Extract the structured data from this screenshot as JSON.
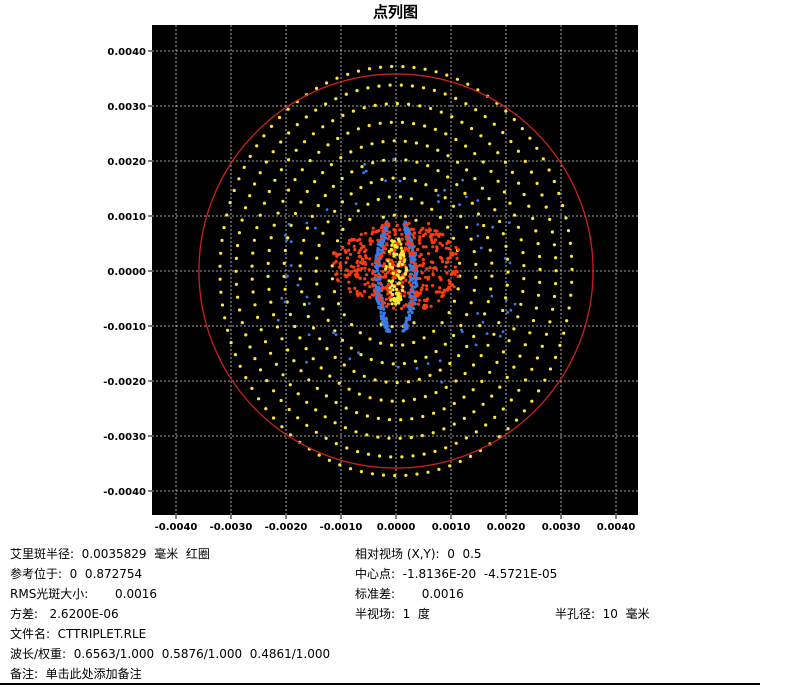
{
  "title": "点列图",
  "colors": {
    "background": "#000000",
    "grid": "#d8d8d8",
    "airy_circle": "#cc1f1f",
    "wave_0_6563": "#ffe833",
    "wave_0_5876": "#ff3a0f",
    "wave_0_4861": "#3a7be8"
  },
  "chart_data": {
    "type": "scatter",
    "title": "点列图",
    "xlabel": "",
    "ylabel": "",
    "xlim": [
      -0.0043,
      0.0043
    ],
    "ylim": [
      -0.0043,
      0.0043
    ],
    "x_ticks": [
      "-0.0040",
      "-0.0030",
      "-0.0020",
      "-0.0010",
      "0.0000",
      "0.0010",
      "0.0020",
      "0.0030",
      "0.0040"
    ],
    "y_ticks": [
      "0.0040",
      "0.0030",
      "0.0020",
      "0.0010",
      "0.0000",
      "-0.0010",
      "-0.0020",
      "-0.0030",
      "-0.0040"
    ],
    "grid": true,
    "airy_radius": 0.0035829,
    "series": [
      {
        "color": "#ffe833",
        "shape": "ring-grid",
        "radius": 0.0032,
        "height": 0.004,
        "center": [
          0,
          0
        ]
      },
      {
        "color": "#3a7be8",
        "shape": "core",
        "half_width": 0.0004,
        "half_height": 0.001,
        "center": [
          0,
          -0.0001
        ]
      },
      {
        "color": "#ff3a0f",
        "shape": "blob",
        "half_width": 0.0012,
        "half_height": 0.0008,
        "center": [
          0,
          0.0001
        ]
      },
      {
        "color": "#ffe833",
        "shape": "core-line",
        "half_width": 0.0002,
        "half_height": 0.0006,
        "center": [
          0,
          0
        ]
      }
    ]
  },
  "info": {
    "airy_radius": "艾里斑半径:  0.0035829  毫米  红圈",
    "reference": "参考位于:  0  0.872754",
    "rms_spot": "RMS光斑大小:       0.0016",
    "variance": "方差:   2.6200E-06",
    "filename": "文件名:  CTTRIPLET.RLE",
    "wavelengths": "波长/权重:  0.6563/1.000  0.5876/1.000  0.4861/1.000",
    "notes": "备注:  单击此处添加备注",
    "relative_field": "相对视场 (X,Y):  0  0.5",
    "center_point": "中心点:  -1.8136E-20  -4.5721E-05",
    "std_dev": "标准差:       0.0016",
    "half_field": "半视场:  1  度",
    "aperture": "半孔径:  10  毫米"
  }
}
